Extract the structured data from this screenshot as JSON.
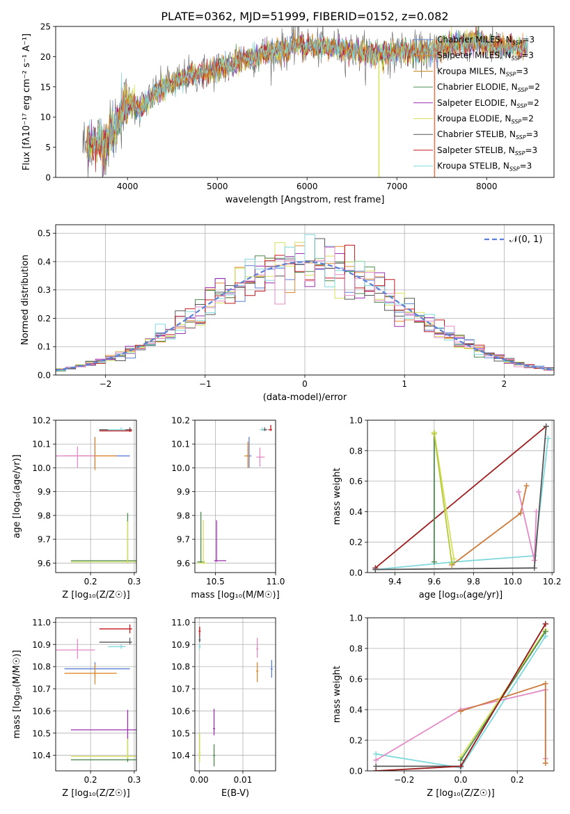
{
  "figure_title": "PLATE=0362, MJD=51999, FIBERID=0152, z=0.082",
  "colors": {
    "blue": "#5b7fd6",
    "orange": "#e08a2c",
    "green": "#4d8a4d",
    "purple": "#9b2fae",
    "yellow": "#d6e05a",
    "gray": "#555555",
    "red": "#c0161c",
    "cyan": "#7fd8dc",
    "pink": "#e389c4",
    "olive": "#b4c83c",
    "darkred": "#9b1c1c",
    "brown": "#cc7a3a"
  },
  "chart_data": [
    {
      "id": "spectrum",
      "type": "line",
      "title": "PLATE=0362, MJD=51999, FIBERID=0152, z=0.082",
      "xlabel": "wavelength [Angstrom, rest frame]",
      "ylabel": "Flux [fλ10⁻¹⁷ erg cm⁻² s⁻¹ A⁻¹]",
      "xlim": [
        3200,
        8750
      ],
      "ylim": [
        0,
        25
      ],
      "xticks": [
        "4000",
        "5000",
        "6000",
        "7000",
        "8000"
      ],
      "yticks": [
        "0",
        "5",
        "10",
        "15",
        "20",
        "25"
      ],
      "grid": false,
      "legend_position": "top-right",
      "continuum_knots_x": [
        3500,
        3600,
        3750,
        3900,
        4000,
        4150,
        4300,
        4500,
        4700,
        4900,
        5100,
        5300,
        5500,
        5700,
        5900,
        6100,
        6300,
        6500,
        6700,
        6900,
        7100,
        7300,
        7500,
        7700,
        7900,
        8100,
        8300,
        8500
      ],
      "continuum_knots_y": [
        5,
        6,
        5.5,
        9.5,
        12.5,
        11.5,
        14,
        15.5,
        17,
        17.5,
        18.5,
        19.5,
        20.5,
        21,
        22,
        21.5,
        21.5,
        21,
        20.5,
        20.5,
        21,
        20.5,
        21.5,
        22.5,
        22.5,
        21.5,
        21.5,
        21.5
      ],
      "series": [
        {
          "name": "Chabrier MILES, N_SSP=3",
          "color": "#5b7fd6"
        },
        {
          "name": "Salpeter MILES, N_SSP=3",
          "color": "#e08a2c"
        },
        {
          "name": "Kroupa MILES, N_SSP=3",
          "color": "#c8861e"
        },
        {
          "name": "Chabrier ELODIE, N_SSP=2",
          "color": "#4d8a4d"
        },
        {
          "name": "Salpeter ELODIE, N_SSP=2",
          "color": "#9b2fae"
        },
        {
          "name": "Kroupa ELODIE, N_SSP=2",
          "color": "#d6e05a"
        },
        {
          "name": "Chabrier STELIB, N_SSP=3",
          "color": "#555555"
        },
        {
          "name": "Salpeter STELIB, N_SSP=3",
          "color": "#c0161c"
        },
        {
          "name": "Kroupa STELIB, N_SSP=3",
          "color": "#7fd8dc"
        }
      ],
      "legend_entries": [
        {
          "name": "Chabrier MILES, N",
          "sub": "SSP",
          "tail": "=3",
          "color": "#5b7fd6"
        },
        {
          "name": "Salpeter MILES, N",
          "sub": "SSP",
          "tail": "=3",
          "color": "#e08a2c"
        },
        {
          "name": "Kroupa MILES, N",
          "sub": "SSP",
          "tail": "=3",
          "color": "#c8861e"
        },
        {
          "name": "Chabrier ELODIE, N",
          "sub": "SSP",
          "tail": "=2",
          "color": "#4d8a4d"
        },
        {
          "name": "Salpeter ELODIE, N",
          "sub": "SSP",
          "tail": "=2",
          "color": "#9b2fae"
        },
        {
          "name": "Kroupa ELODIE, N",
          "sub": "SSP",
          "tail": "=2",
          "color": "#d6e05a"
        },
        {
          "name": "Chabrier STELIB, N",
          "sub": "SSP",
          "tail": "=3",
          "color": "#555555"
        },
        {
          "name": "Salpeter STELIB, N",
          "sub": "SSP",
          "tail": "=3",
          "color": "#c0161c"
        },
        {
          "name": "Kroupa STELIB, N",
          "sub": "SSP",
          "tail": "=3",
          "color": "#7fd8dc"
        }
      ],
      "drop_lines": [
        {
          "x": 6800,
          "from": 20.5,
          "to": 0,
          "color": "#d6e05a"
        },
        {
          "x": 7420,
          "from": 21.5,
          "to": 0,
          "color": "#e07a52"
        }
      ]
    },
    {
      "id": "residuals",
      "type": "histogram",
      "xlabel": "(data-model)/error",
      "ylabel": "Normed distribution",
      "xlim": [
        -2.5,
        2.5
      ],
      "ylim": [
        0,
        0.53
      ],
      "xticks": [
        "−2",
        "−1",
        "0",
        "1",
        "2"
      ],
      "yticks": [
        "0.0",
        "0.1",
        "0.2",
        "0.3",
        "0.4",
        "0.5"
      ],
      "grid": true,
      "bin_width": 0.1,
      "reference_curve": {
        "name": "𝒩(0,1)",
        "color": "#5b7fd6",
        "style": "dashed"
      },
      "legend_label": "𝒩(0, 1)",
      "legend_position": "top-right",
      "series_colors": [
        "#5b7fd6",
        "#e08a2c",
        "#4d8a4d",
        "#9b2fae",
        "#d6e05a",
        "#555555",
        "#c0161c",
        "#7fd8dc",
        "#e389c4"
      ]
    },
    {
      "id": "age_vs_Z",
      "type": "errorbar",
      "xlabel": "Z [log₁₀(Z/Z☉)]",
      "ylabel": "age  [log₁₀(age/yr)]",
      "xlim": [
        0.12,
        0.305
      ],
      "ylim": [
        9.56,
        10.2
      ],
      "xticks": [
        "0.2",
        "0.3"
      ],
      "yticks": [
        "9.6",
        "9.7",
        "9.8",
        "9.9",
        "10.0",
        "10.1",
        "10.2"
      ],
      "grid": true,
      "points": [
        {
          "x": 0.21,
          "xerr": [
            0.07,
            0.08
          ],
          "y": 10.05,
          "yerr": [
            0.05,
            0.08
          ],
          "color": "#5b7fd6"
        },
        {
          "x": 0.21,
          "xerr": [
            0.07,
            0.05
          ],
          "y": 10.05,
          "yerr": [
            0.06,
            0.08
          ],
          "color": "#e08a2c"
        },
        {
          "x": 0.17,
          "xerr": [
            0.05,
            0.04
          ],
          "y": 10.05,
          "yerr": [
            0.05,
            0.04
          ],
          "color": "#e389c4"
        },
        {
          "x": 0.285,
          "xerr": [
            0.13,
            0.02
          ],
          "y": 9.61,
          "yerr": [
            0.01,
            0.2
          ],
          "color": "#4d8a4d"
        },
        {
          "x": 0.285,
          "xerr": [
            0.13,
            0.02
          ],
          "y": 9.605,
          "yerr": [
            0.005,
            0.17
          ],
          "color": "#d6e05a"
        },
        {
          "x": 0.29,
          "xerr": [
            0.07,
            0.005
          ],
          "y": 10.16,
          "yerr": [
            0.004,
            0.01
          ],
          "color": "#555555"
        },
        {
          "x": 0.29,
          "xerr": [
            0.07,
            0.005
          ],
          "y": 10.155,
          "yerr": [
            0.004,
            0.01
          ],
          "color": "#c0161c"
        },
        {
          "x": 0.27,
          "xerr": [
            0.03,
            0.01
          ],
          "y": 10.16,
          "yerr": [
            0.003,
            0.01
          ],
          "color": "#7fd8dc"
        }
      ]
    },
    {
      "id": "age_vs_mass",
      "type": "errorbar",
      "xlabel": "mass [log₁₀(M/M☉)]",
      "ylabel": "",
      "xlim": [
        10.33,
        11.0
      ],
      "ylim": [
        9.56,
        10.2
      ],
      "xticks": [
        "10.5",
        "11.0"
      ],
      "yticks": [
        "9.6",
        "9.7",
        "9.8",
        "9.9",
        "10.0",
        "10.1",
        "10.2"
      ],
      "grid": true,
      "points": [
        {
          "x": 10.78,
          "xerr": [
            0.02,
            0.02
          ],
          "y": 10.05,
          "yerr": [
            0.05,
            0.08
          ],
          "color": "#5b7fd6"
        },
        {
          "x": 10.77,
          "xerr": [
            0.03,
            0.01
          ],
          "y": 10.05,
          "yerr": [
            0.05,
            0.06
          ],
          "color": "#e08a2c"
        },
        {
          "x": 10.87,
          "xerr": [
            0.03,
            0.04
          ],
          "y": 10.045,
          "yerr": [
            0.04,
            0.04
          ],
          "color": "#e389c4"
        },
        {
          "x": 10.38,
          "xerr": [
            0.03,
            0.03
          ],
          "y": 9.605,
          "yerr": [
            0.005,
            0.21
          ],
          "color": "#4d8a4d"
        },
        {
          "x": 10.4,
          "xerr": [
            0.05,
            0.03
          ],
          "y": 9.6,
          "yerr": [
            0.005,
            0.18
          ],
          "color": "#d6e05a"
        },
        {
          "x": 10.51,
          "xerr": [
            0.02,
            0.08
          ],
          "y": 9.61,
          "yerr": [
            0.005,
            0.17
          ],
          "color": "#9b2fae"
        },
        {
          "x": 10.91,
          "xerr": [
            0.02,
            0.02
          ],
          "y": 10.16,
          "yerr": [
            0.005,
            0.01
          ],
          "color": "#555555"
        },
        {
          "x": 10.96,
          "xerr": [
            0.02,
            0.01
          ],
          "y": 10.16,
          "yerr": [
            0.005,
            0.02
          ],
          "color": "#c0161c"
        },
        {
          "x": 10.89,
          "xerr": [
            0.02,
            0.01
          ],
          "y": 10.16,
          "yerr": [
            0.005,
            0.01
          ],
          "color": "#7fd8dc"
        }
      ]
    },
    {
      "id": "massweight_vs_age",
      "type": "line",
      "xlabel": "age  [log₁₀(age/yr)]",
      "ylabel": "mass weight",
      "xlim": [
        9.26,
        10.21
      ],
      "ylim": [
        0,
        1.0
      ],
      "xticks": [
        "9.4",
        "9.6",
        "9.8",
        "10.0",
        "10.2"
      ],
      "yticks": [
        "0.0",
        "0.2",
        "0.4",
        "0.6",
        "0.8",
        "1.0"
      ],
      "grid": true,
      "series": [
        {
          "color": "#7fd8dc",
          "x": [
            9.3,
            9.7,
            10.11,
            10.18
          ],
          "y": [
            0.02,
            0.07,
            0.11,
            0.88
          ]
        },
        {
          "color": "#9b1c1c",
          "x": [
            9.3,
            10.17
          ],
          "y": [
            0.03,
            0.96
          ]
        },
        {
          "color": "#4d8a4d",
          "x": [
            9.6,
            9.6
          ],
          "y": [
            0.07,
            0.92
          ]
        },
        {
          "color": "#d6e05a",
          "x": [
            9.6,
            9.7
          ],
          "y": [
            0.92,
            0.09
          ]
        },
        {
          "color": "#cc7a3a",
          "x": [
            9.69,
            10.04,
            10.07
          ],
          "y": [
            0.05,
            0.39,
            0.57
          ]
        },
        {
          "color": "#e389c4",
          "x": [
            10.03,
            10.11,
            10.12
          ],
          "y": [
            0.53,
            0.08,
            0.4
          ]
        },
        {
          "color": "#555555",
          "x": [
            9.3,
            10.11,
            10.17
          ],
          "y": [
            0.02,
            0.03,
            0.96
          ]
        },
        {
          "color": "#b4c83c",
          "x": [
            9.6,
            9.69
          ],
          "y": [
            0.91,
            0.06
          ]
        }
      ]
    },
    {
      "id": "mass_vs_Z",
      "type": "errorbar",
      "xlabel": "Z [log₁₀(Z/Z☉)]",
      "ylabel": "mass [log₁₀(M/M☉)]",
      "xlim": [
        0.12,
        0.305
      ],
      "ylim": [
        10.33,
        11.02
      ],
      "xticks": [
        "0.2",
        "0.3"
      ],
      "yticks": [
        "10.4",
        "10.5",
        "10.6",
        "10.7",
        "10.8",
        "10.9",
        "11.0"
      ],
      "grid": true,
      "points": [
        {
          "x": 0.21,
          "xerr": [
            0.07,
            0.08
          ],
          "y": 10.79,
          "yerr": [
            0.04,
            0.03
          ],
          "color": "#5b7fd6"
        },
        {
          "x": 0.21,
          "xerr": [
            0.07,
            0.05
          ],
          "y": 10.77,
          "yerr": [
            0.05,
            0.04
          ],
          "color": "#e08a2c"
        },
        {
          "x": 0.17,
          "xerr": [
            0.05,
            0.04
          ],
          "y": 10.875,
          "yerr": [
            0.04,
            0.05
          ],
          "color": "#e389c4"
        },
        {
          "x": 0.285,
          "xerr": [
            0.13,
            0.02
          ],
          "y": 10.38,
          "yerr": [
            0.01,
            0.1
          ],
          "color": "#4d8a4d"
        },
        {
          "x": 0.285,
          "xerr": [
            0.13,
            0.02
          ],
          "y": 10.395,
          "yerr": [
            0.01,
            0.09
          ],
          "color": "#d6e05a"
        },
        {
          "x": 0.285,
          "xerr": [
            0.13,
            0.02
          ],
          "y": 10.515,
          "yerr": [
            0.04,
            0.09
          ],
          "color": "#9b2fae"
        },
        {
          "x": 0.29,
          "xerr": [
            0.07,
            0.005
          ],
          "y": 10.91,
          "yerr": [
            0.01,
            0.02
          ],
          "color": "#555555"
        },
        {
          "x": 0.29,
          "xerr": [
            0.07,
            0.005
          ],
          "y": 10.97,
          "yerr": [
            0.02,
            0.02
          ],
          "color": "#c0161c"
        },
        {
          "x": 0.27,
          "xerr": [
            0.03,
            0.01
          ],
          "y": 10.89,
          "yerr": [
            0.01,
            0.01
          ],
          "color": "#7fd8dc"
        }
      ]
    },
    {
      "id": "mass_vs_EBV",
      "type": "errorbar",
      "xlabel": "E(B-V)",
      "ylabel": "",
      "xlim": [
        -0.001,
        0.0175
      ],
      "ylim": [
        10.33,
        11.02
      ],
      "xticks": [
        "0.00",
        "0.01"
      ],
      "yticks": [
        "10.4",
        "10.5",
        "10.6",
        "10.7",
        "10.8",
        "10.9",
        "11.0"
      ],
      "grid": true,
      "points": [
        {
          "x": 0.0166,
          "y": 10.79,
          "yerr": [
            0.04,
            0.04
          ],
          "color": "#5b7fd6"
        },
        {
          "x": 0.0133,
          "y": 10.78,
          "yerr": [
            0.05,
            0.04
          ],
          "color": "#e08a2c"
        },
        {
          "x": 0.0133,
          "y": 10.88,
          "yerr": [
            0.04,
            0.05
          ],
          "color": "#e389c4"
        },
        {
          "x": 0.0034,
          "y": 10.4,
          "yerr": [
            0.05,
            0.05
          ],
          "color": "#4d8a4d"
        },
        {
          "x": 0.0001,
          "y": 10.41,
          "yerr": [
            0.04,
            0.09
          ],
          "color": "#d6e05a"
        },
        {
          "x": 0.0034,
          "y": 10.52,
          "yerr": [
            0.03,
            0.09
          ],
          "color": "#9b2fae"
        },
        {
          "x": 0.0001,
          "y": 10.92,
          "yerr": [
            0.01,
            0.02
          ],
          "color": "#555555"
        },
        {
          "x": 0.0001,
          "y": 10.96,
          "yerr": [
            0.02,
            0.02
          ],
          "color": "#c0161c"
        },
        {
          "x": 0.0001,
          "y": 10.89,
          "yerr": [
            0.01,
            0.01
          ],
          "color": "#7fd8dc"
        }
      ]
    },
    {
      "id": "massweight_vs_Z",
      "type": "line",
      "xlabel": "Z [log₁₀(Z/Z☉)]",
      "ylabel": "mass weight",
      "xlim": [
        -0.33,
        0.33
      ],
      "ylim": [
        0,
        1.0
      ],
      "xticks": [
        "−0.2",
        "0.0",
        "0.2"
      ],
      "yticks": [
        "0.0",
        "0.2",
        "0.4",
        "0.6",
        "0.8",
        "1.0"
      ],
      "grid": true,
      "series": [
        {
          "color": "#7fd8dc",
          "x": [
            -0.3,
            0.0,
            0.3
          ],
          "y": [
            0.11,
            0.02,
            0.88
          ]
        },
        {
          "color": "#e389c4",
          "x": [
            -0.3,
            0.0,
            0.3,
            0.3
          ],
          "y": [
            0.07,
            0.4,
            0.53,
            0.08
          ]
        },
        {
          "color": "#cc7a3a",
          "x": [
            0.0,
            0.3,
            0.3
          ],
          "y": [
            0.39,
            0.57,
            0.05
          ]
        },
        {
          "color": "#d6e05a",
          "x": [
            0.0,
            0.3
          ],
          "y": [
            0.09,
            0.92
          ]
        },
        {
          "color": "#4d8a4d",
          "x": [
            0.0,
            0.3
          ],
          "y": [
            0.07,
            0.91
          ]
        },
        {
          "color": "#555555",
          "x": [
            -0.3,
            0.0,
            0.3
          ],
          "y": [
            0.03,
            0.03,
            0.96
          ]
        },
        {
          "color": "#9b1c1c",
          "x": [
            -0.3,
            0.0,
            0.3
          ],
          "y": [
            0.0,
            0.03,
            0.96
          ]
        }
      ]
    }
  ]
}
